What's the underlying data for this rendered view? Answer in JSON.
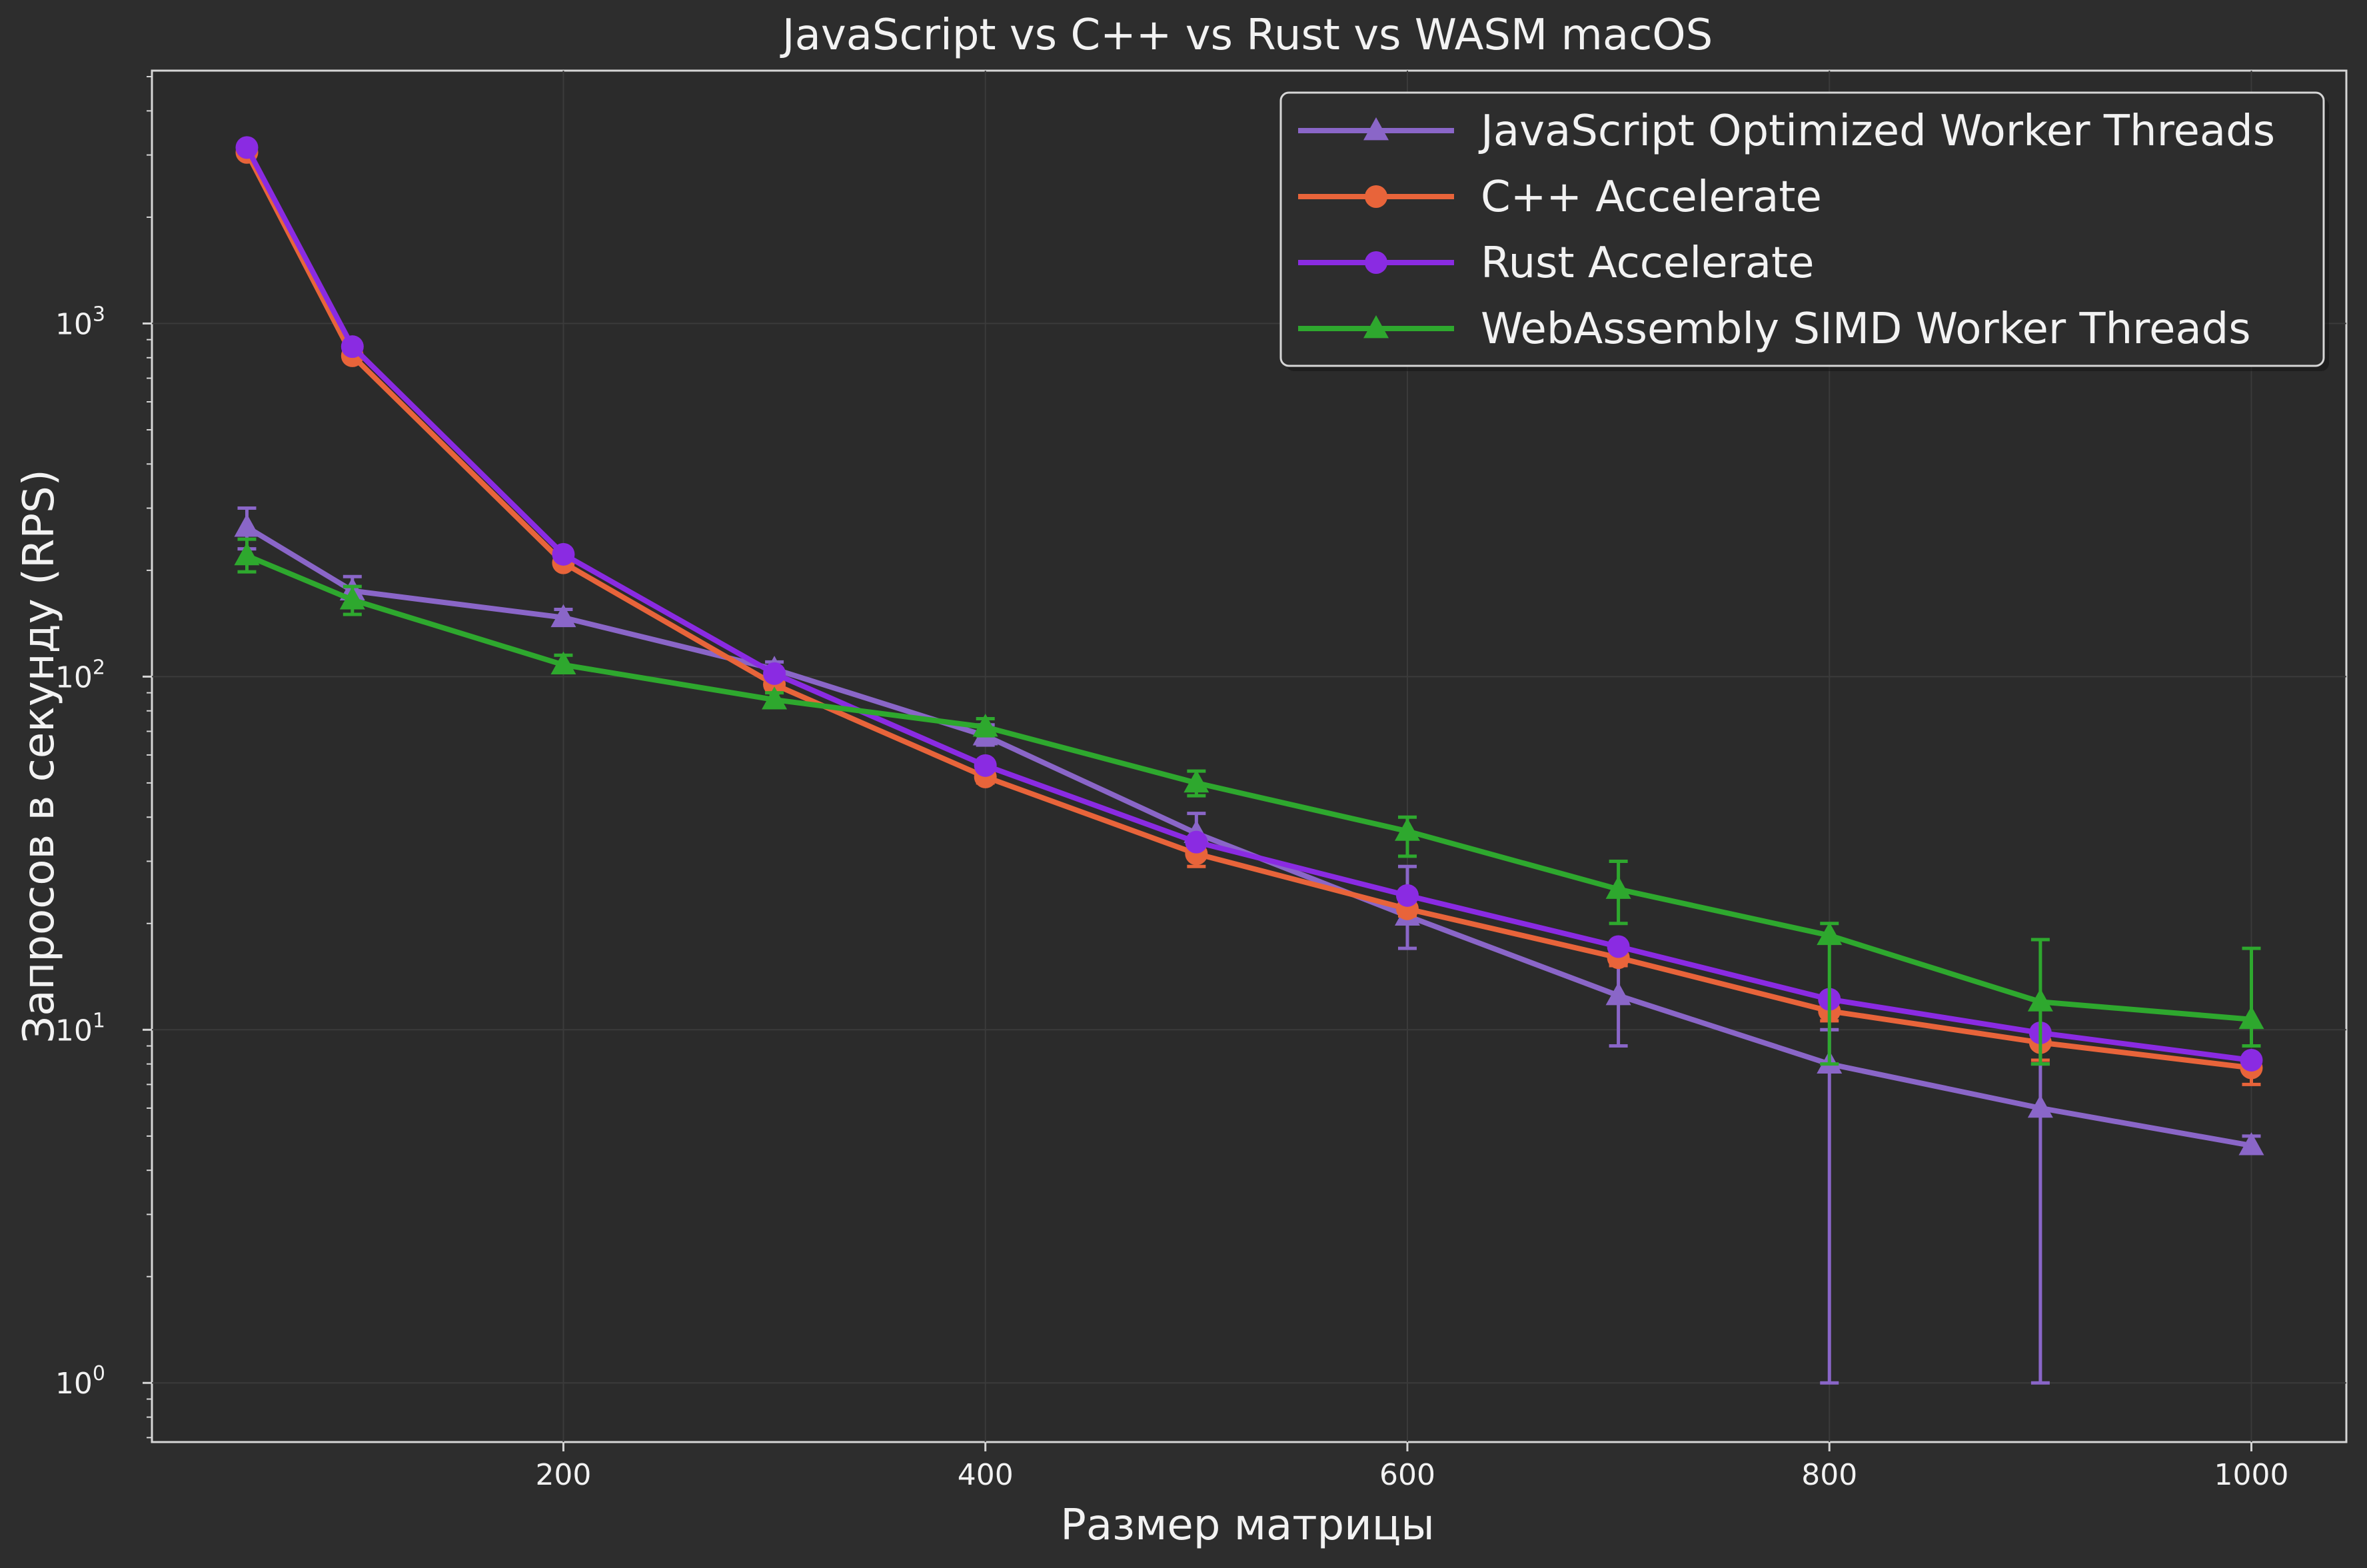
{
  "chart_data": {
    "type": "line",
    "title": "JavaScript vs C++ vs Rust vs WASM macOS",
    "xlabel": "Размер матрицы",
    "ylabel": "Запросов в секунду (RPS)",
    "xlim": [
      5,
      1045
    ],
    "ylim": [
      0.68,
      5200
    ],
    "yscale": "log",
    "x_ticks": [
      200,
      400,
      600,
      800,
      1000
    ],
    "y_ticks": [
      {
        "value": 1,
        "base": "10",
        "exp": "0"
      },
      {
        "value": 10,
        "base": "10",
        "exp": "1"
      },
      {
        "value": 100,
        "base": "10",
        "exp": "2"
      },
      {
        "value": 1000,
        "base": "10",
        "exp": "3"
      }
    ],
    "grid": true,
    "legend_position": "top-right",
    "x": [
      50,
      100,
      200,
      300,
      400,
      500,
      600,
      700,
      800,
      900,
      1000
    ],
    "series": [
      {
        "name": "JavaScript Optimized Worker Threads",
        "color": "#8a66c8",
        "marker": "triangle",
        "values": [
          265,
          175,
          147,
          105,
          68,
          36,
          21,
          12.5,
          8,
          6,
          4.7
        ],
        "err_low": [
          230,
          160,
          140,
          100,
          64,
          32,
          17,
          9,
          1,
          1,
          4.5
        ],
        "err_high": [
          300,
          192,
          155,
          110,
          73,
          41,
          29,
          17,
          10,
          8,
          5
        ]
      },
      {
        "name": "C++ Accelerate",
        "color": "#e8643a",
        "marker": "circle",
        "values": [
          3050,
          810,
          210,
          95,
          52,
          31.5,
          22,
          16,
          11.3,
          9.2,
          7.8
        ],
        "err_low": [
          3000,
          790,
          205,
          92,
          50,
          29,
          21,
          15.2,
          10.6,
          8.2,
          7
        ]
      },
      {
        "name": "Rust Accelerate",
        "color": "#8a2be2",
        "marker": "circle",
        "values": [
          3150,
          860,
          222,
          102,
          56,
          34,
          24,
          17.2,
          12.2,
          9.8,
          8.2
        ]
      },
      {
        "name": "WebAssembly SIMD Worker Threads",
        "color": "#2ea82e",
        "marker": "triangle",
        "values": [
          220,
          165,
          108,
          86,
          72,
          50,
          36.5,
          25,
          18.5,
          12,
          10.7
        ],
        "err_low": [
          198,
          150,
          103,
          82,
          68,
          46,
          31,
          20,
          8,
          8,
          9
        ],
        "err_high": [
          245,
          180,
          115,
          90,
          76,
          54,
          40,
          30,
          20,
          18,
          17
        ]
      }
    ]
  }
}
